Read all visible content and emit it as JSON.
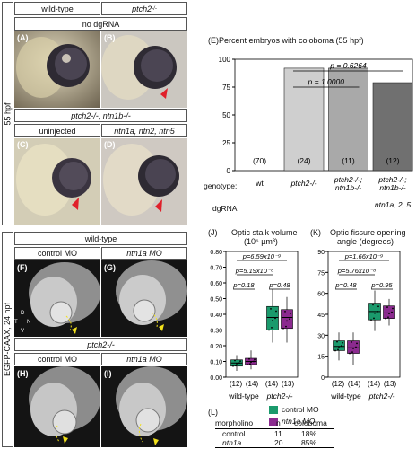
{
  "side_labels": {
    "top": "55 hpf",
    "bottom": "EGFP-CAAX, 24 hpf"
  },
  "top_headers": {
    "wt": "wild-type",
    "mut": "ptch2",
    "mut_sup": "-/-",
    "nodg": "no dgRNA",
    "double": "ptch2-/-; ntn1b-/-",
    "uninj": "uninjected",
    "inj": "ntn1a, ntn2, ntn5"
  },
  "panels": {
    "A": "(A)",
    "B": "(B)",
    "C": "(C)",
    "D": "(D)",
    "F": "(F)",
    "G": "(G)",
    "H": "(H)",
    "I": "(I)"
  },
  "bottom_headers": {
    "wt": "wild-type",
    "ctrl1": "control MO",
    "ntn1": "ntn1a MO",
    "mut": "ptch2-/-",
    "ctrl2": "control MO",
    "ntn2": "ntn1a MO"
  },
  "axis_glyph": {
    "d": "D",
    "v": "V",
    "t": "T",
    "n": "N"
  },
  "panel_E": {
    "label": "(E)",
    "title": "Percent embryos with coloboma (55 hpf)",
    "row_genotype": "genotype:",
    "row_dgrna": "dgRNA:",
    "geno_labels": [
      "wt",
      "ptch2-/-",
      "ptch2-/-; ntn1b-/-",
      "ptch2-/-; ntn1b-/-"
    ],
    "dg_labels": [
      "",
      "",
      "",
      "ntn1a, 2, 5"
    ],
    "pvals": [
      "p = 0.6264",
      "p = 1.0000"
    ],
    "counts": [
      "(70)",
      "(24)",
      "(11)",
      "(12)"
    ]
  },
  "panel_J": {
    "label": "(J)",
    "title": "Optic stalk volume",
    "unit": "(10⁶ µm³)",
    "pvals": [
      "p=6.59x10⁻⁹",
      "p=5.19x10⁻⁸",
      "p=0.18",
      "p=0.48"
    ],
    "counts": [
      "(12)",
      "(14)",
      "(14)",
      "(13)"
    ],
    "xcats": [
      "wild-type",
      "ptch2-/-"
    ]
  },
  "panel_K": {
    "label": "(K)",
    "title": "Optic fissure opening",
    "title2": "angle (degrees)",
    "pvals": [
      "p=1.66x10⁻⁹",
      "p=5.76x10⁻⁸",
      "p=0.48",
      "p=0.95"
    ],
    "counts": [
      "(12)",
      "(14)",
      "(14)",
      "(13)"
    ],
    "xcats": [
      "wild-type",
      "ptch2-/-"
    ]
  },
  "legend": {
    "control": "control MO",
    "ntn1a": "ntn1a MO"
  },
  "panel_L": {
    "label": "(L)",
    "headers": [
      "morpholino",
      "n",
      "coloboma"
    ],
    "rows": [
      [
        "control",
        "11",
        "18%"
      ],
      [
        "ntn1a",
        "20",
        "85%"
      ]
    ]
  },
  "colors": {
    "control": "#1a9a6c",
    "ntn1a": "#8b2a8f",
    "bar_wt": "#ffffff",
    "bar_mut": "#cfcfcf",
    "bar_dbl": "#a9a9a9",
    "bar_inj": "#707070",
    "arrow": "#e0202a",
    "yellow": "#f2e11b"
  },
  "chart_data": [
    {
      "type": "bar",
      "title": "Percent embryos with coloboma (55 hpf)",
      "categories": [
        "wt",
        "ptch2-/-",
        "ptch2-/-; ntn1b-/-",
        "ptch2-/-; ntn1b-/- + ntn1a, 2, 5"
      ],
      "values": [
        0,
        92,
        92,
        79
      ],
      "n": [
        70,
        24,
        11,
        12
      ],
      "ylim": [
        0,
        100
      ],
      "yticks": [
        0,
        25,
        50,
        75,
        100
      ]
    },
    {
      "type": "box",
      "title": "Optic stalk volume (10⁶ µm³)",
      "ylim": [
        0,
        0.8
      ],
      "yticks": [
        "0.00",
        "0.10",
        "0.20",
        "0.30",
        "0.40",
        "0.50",
        "0.60",
        "0.70",
        "0.80"
      ],
      "categories": [
        "wild-type",
        "ptch2-/-"
      ],
      "series": [
        {
          "name": "control MO",
          "median": [
            0.09,
            0.38
          ],
          "q1": [
            0.07,
            0.3
          ],
          "q3": [
            0.11,
            0.45
          ],
          "min": [
            0.04,
            0.22
          ],
          "max": [
            0.14,
            0.56
          ]
        },
        {
          "name": "ntn1a MO",
          "median": [
            0.1,
            0.38
          ],
          "q1": [
            0.08,
            0.31
          ],
          "q3": [
            0.12,
            0.43
          ],
          "min": [
            0.05,
            0.22
          ],
          "max": [
            0.17,
            0.51
          ]
        }
      ]
    },
    {
      "type": "box",
      "title": "Optic fissure opening angle (degrees)",
      "ylim": [
        0,
        90
      ],
      "yticks": [
        "0",
        "15",
        "30",
        "45",
        "60",
        "75",
        "90"
      ],
      "categories": [
        "wild-type",
        "ptch2-/-"
      ],
      "series": [
        {
          "name": "control MO",
          "median": [
            22,
            47
          ],
          "q1": [
            19,
            41
          ],
          "q3": [
            26,
            53
          ],
          "min": [
            12,
            33
          ],
          "max": [
            32,
            62
          ]
        },
        {
          "name": "ntn1a MO",
          "median": [
            21,
            46
          ],
          "q1": [
            17,
            42
          ],
          "q3": [
            26,
            51
          ],
          "min": [
            9,
            37
          ],
          "max": [
            32,
            56
          ]
        }
      ]
    }
  ]
}
